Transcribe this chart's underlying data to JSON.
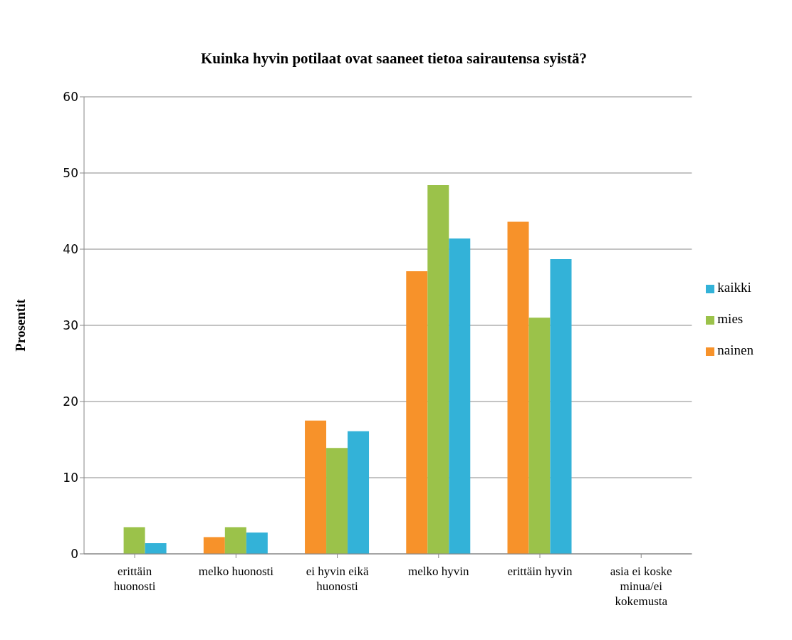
{
  "chart_data": {
    "type": "bar",
    "title": "Kuinka hyvin potilaat ovat saaneet tietoa sairautensa syistä?",
    "ylabel": "Prosentit",
    "categories": [
      "erittäin huonosti",
      "melko huonosti",
      "ei hyvin eikä huonosti",
      "melko hyvin",
      "erittäin hyvin",
      "asia ei koske minua/ei kokemusta"
    ],
    "series": [
      {
        "name": "nainen",
        "color": "#f7922a",
        "values": [
          0,
          2.2,
          17.5,
          37.1,
          43.6,
          0
        ]
      },
      {
        "name": "mies",
        "color": "#9bc24a",
        "values": [
          3.5,
          3.5,
          13.9,
          48.4,
          31.0,
          0
        ]
      },
      {
        "name": "kaikki",
        "color": "#33b2d8",
        "values": [
          1.4,
          2.8,
          16.1,
          41.4,
          38.7,
          0
        ]
      }
    ],
    "ylim": [
      0,
      60
    ],
    "yticks": [
      0,
      10,
      20,
      30,
      40,
      50,
      60
    ],
    "grid": "y",
    "legend": "right"
  }
}
